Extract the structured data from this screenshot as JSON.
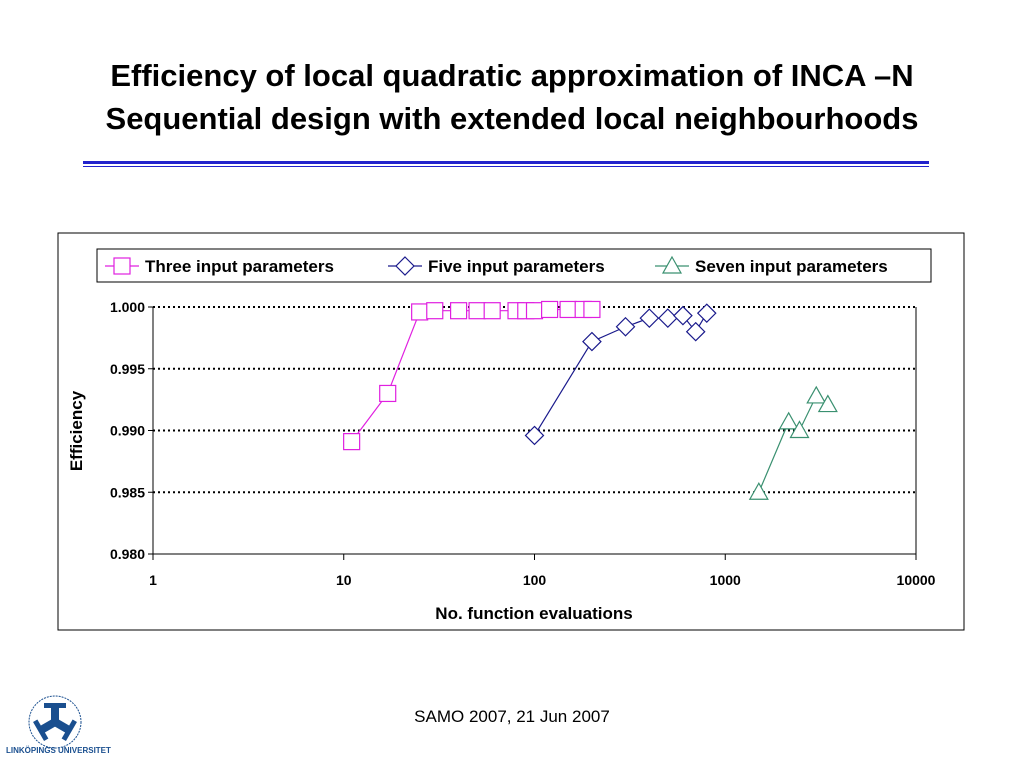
{
  "slide": {
    "title_line1": "Efficiency of local quadratic approximation of INCA –N",
    "title_line2": "Sequential design with extended local neighbourhoods",
    "footer": "SAMO 2007, 21 Jun 2007",
    "logo_text": "LINKÖPINGS UNIVERSITET"
  },
  "chart_data": {
    "type": "line",
    "title": "",
    "xlabel": "No. function evaluations",
    "ylabel": "Efficiency",
    "xscale": "log",
    "xlim": [
      1,
      10000
    ],
    "ylim": [
      0.98,
      1.0
    ],
    "xticks": [
      "1",
      "10",
      "100",
      "1000",
      "10000"
    ],
    "xtick_values": [
      1,
      10,
      100,
      1000,
      10000
    ],
    "yticks": [
      "0.980",
      "0.985",
      "0.990",
      "0.995",
      "1.000"
    ],
    "ytick_values": [
      0.98,
      0.985,
      0.99,
      0.995,
      1.0
    ],
    "grid": "horizontal dotted",
    "legend_placement": "top",
    "series": [
      {
        "name": "Three input parameters",
        "marker": "square",
        "color": "#e020e0",
        "x": [
          11,
          17,
          25,
          30,
          40,
          50,
          60,
          80,
          90,
          100,
          120,
          150,
          180,
          200
        ],
        "y": [
          0.9891,
          0.993,
          0.9996,
          0.9997,
          0.9997,
          0.9997,
          0.9997,
          0.9997,
          0.9997,
          0.9997,
          0.9998,
          0.9998,
          0.9998,
          0.9998
        ]
      },
      {
        "name": "Five input parameters",
        "marker": "diamond",
        "color": "#1a1a8c",
        "x": [
          100,
          200,
          300,
          400,
          500,
          600,
          700,
          800
        ],
        "y": [
          0.9896,
          0.9972,
          0.9984,
          0.9991,
          0.9991,
          0.9993,
          0.998,
          0.9995
        ]
      },
      {
        "name": "Seven input parameters",
        "marker": "triangle",
        "color": "#3a9070",
        "x": [
          1500,
          2150,
          2450,
          3000,
          3450
        ],
        "y": [
          0.985,
          0.9907,
          0.99,
          0.9928,
          0.9921
        ]
      }
    ]
  }
}
